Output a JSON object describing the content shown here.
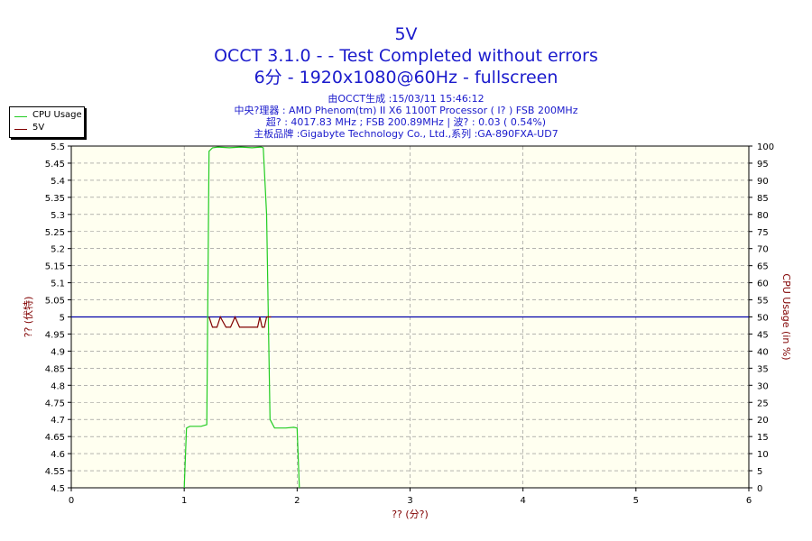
{
  "title": {
    "line1": "5V",
    "line2": "OCCT 3.1.0 -  - Test Completed without errors",
    "line3": "6分 - 1920x1080@60Hz - fullscreen"
  },
  "info": {
    "line1": "由OCCT生成 :15/03/11 15:46:12",
    "line2": "中央?理器 : AMD Phenom(tm) II X6 1100T Processor (  I? ) FSB 200MHz",
    "line3": "超? : 4017.83 MHz ; FSB 200.89MHz | 波? : 0.03 ( 0.54%)",
    "line4": "主板品牌 :Gigabyte Technology Co., Ltd.,系列 :GA-890FXA-UD7"
  },
  "legend": [
    {
      "label": "CPU Usage",
      "color": "#22cc22"
    },
    {
      "label": "5V",
      "color": "#800000"
    }
  ],
  "chart_data": {
    "type": "line",
    "xlabel": "?? (分?)",
    "ylabel_left": "?? (伏特)",
    "ylabel_right": "CPU Usage (in %)",
    "xlim": [
      0,
      6
    ],
    "ylim_left": [
      4.5,
      5.5
    ],
    "ylim_right": [
      0,
      100
    ],
    "x_ticks": [
      "0",
      "1",
      "2",
      "3",
      "4",
      "5",
      "6"
    ],
    "y_left_ticks": [
      "4.5",
      "4.55",
      "4.6",
      "4.65",
      "4.7",
      "4.75",
      "4.8",
      "4.85",
      "4.9",
      "4.95",
      "5",
      "5.05",
      "5.1",
      "5.15",
      "5.2",
      "5.25",
      "5.3",
      "5.35",
      "5.4",
      "5.45",
      "5.5"
    ],
    "y_right_ticks": [
      "0",
      "5",
      "10",
      "15",
      "20",
      "25",
      "30",
      "35",
      "40",
      "45",
      "50",
      "55",
      "60",
      "65",
      "70",
      "75",
      "80",
      "85",
      "90",
      "95",
      "100"
    ],
    "grid": true,
    "legend_position": "top-left",
    "colors": {
      "cpu": "#22cc22",
      "voltage": "#800000",
      "reference": "#0000aa",
      "plot_bg": "#fffff0",
      "grid": "#888888"
    },
    "reference_line": {
      "value": 5.0,
      "axis": "left"
    },
    "series": [
      {
        "name": "CPU Usage",
        "axis": "right",
        "x": [
          1.0,
          1.02,
          1.05,
          1.1,
          1.15,
          1.2,
          1.22,
          1.25,
          1.3,
          1.4,
          1.5,
          1.6,
          1.68,
          1.7,
          1.73,
          1.76,
          1.8,
          1.9,
          1.97,
          2.0,
          2.02
        ],
        "y": [
          0,
          17.5,
          18,
          18,
          18,
          18.5,
          98.5,
          99.5,
          99.7,
          99.5,
          99.7,
          99.5,
          99.7,
          99.5,
          80,
          20,
          17.5,
          17.5,
          17.7,
          17.5,
          0
        ]
      },
      {
        "name": "5V",
        "axis": "left",
        "x": [
          1.22,
          1.25,
          1.29,
          1.32,
          1.37,
          1.41,
          1.45,
          1.49,
          1.53,
          1.57,
          1.61,
          1.65,
          1.67,
          1.69,
          1.71,
          1.73,
          1.75,
          1.77
        ],
        "y": [
          5.0,
          4.97,
          4.97,
          5.0,
          4.97,
          4.97,
          5.0,
          4.97,
          4.97,
          4.97,
          4.97,
          4.97,
          5.0,
          4.97,
          4.97,
          5.0,
          5.0,
          5.0
        ]
      }
    ]
  }
}
